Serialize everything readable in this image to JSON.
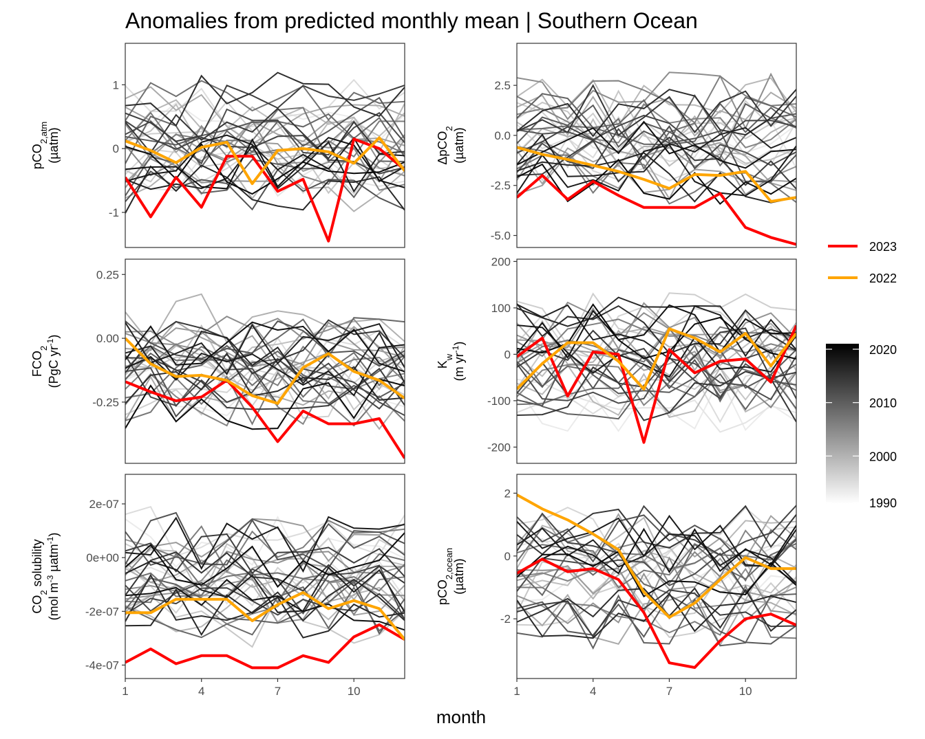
{
  "chart_data": {
    "type": "line",
    "title": "Anomalies from predicted monthly mean | Southern Ocean",
    "xlabel": "month",
    "x": [
      1,
      2,
      3,
      4,
      5,
      6,
      7,
      8,
      9,
      10,
      11,
      12
    ],
    "x_ticks": [
      "1",
      "4",
      "7",
      "10"
    ],
    "x_tick_values": [
      1,
      4,
      7,
      10
    ],
    "xlim": [
      1,
      12
    ],
    "legend": {
      "position": "right",
      "highlight": [
        {
          "name": "2023",
          "color": "#ff0000"
        },
        {
          "name": "2022",
          "color": "#ffa500"
        }
      ],
      "gradient": {
        "low_color": "#ffffff",
        "high_color": "#000000",
        "ticks": [
          "2020",
          "2010",
          "2000",
          "1990"
        ],
        "tick_values": [
          2020,
          2010,
          2000,
          1990
        ],
        "range": [
          1990,
          2020
        ]
      }
    },
    "panels": [
      {
        "id": "pco2atm",
        "ylabel_main": "pCO",
        "ylabel_sub": "2,atm",
        "ylabel_unit": "(µatm)",
        "ylim": [
          -1.55,
          1.65
        ],
        "yticks": [
          1,
          0,
          -1
        ],
        "ytick_labels": [
          "1",
          "0",
          "-1"
        ],
        "highlight": [
          {
            "name": "2023",
            "color": "#ff0000",
            "values": [
              -0.45,
              -1.07,
              -0.45,
              -0.92,
              -0.12,
              -0.12,
              -0.67,
              -0.48,
              -1.45,
              0.15,
              0.0,
              -0.33
            ]
          },
          {
            "name": "2022",
            "color": "#ffa500",
            "values": [
              0.12,
              -0.03,
              -0.22,
              0.02,
              0.1,
              -0.55,
              -0.03,
              -0.0,
              -0.05,
              -0.23,
              0.17,
              -0.35
            ]
          }
        ]
      },
      {
        "id": "dpco2",
        "ylabel_main": "ΔpCO",
        "ylabel_sub": "2",
        "ylabel_unit": "(µatm)",
        "ylim": [
          -5.6,
          4.6
        ],
        "yticks": [
          2.5,
          0.0,
          -2.5,
          -5.0
        ],
        "ytick_labels": [
          "2.5",
          "0.0",
          "-2.5",
          "-5.0"
        ],
        "highlight": [
          {
            "name": "2023",
            "color": "#ff0000",
            "values": [
              -3.1,
              -2.0,
              -3.2,
              -2.3,
              -3.0,
              -3.6,
              -3.6,
              -3.6,
              -2.9,
              -4.6,
              -5.1,
              -5.45
            ]
          },
          {
            "name": "2022",
            "color": "#ffa500",
            "values": [
              -0.6,
              -0.95,
              -1.2,
              -1.5,
              -1.8,
              -2.2,
              -2.65,
              -1.95,
              -2.0,
              -1.8,
              -3.3,
              -3.1
            ]
          }
        ]
      },
      {
        "id": "fco2",
        "ylabel_main": "FCO",
        "ylabel_sub": "2",
        "ylabel_unit": "(PgC yr",
        "ylabel_unit_sup": "-1",
        "ylabel_unit_end": ")",
        "ylim": [
          -0.49,
          0.31
        ],
        "yticks": [
          0.25,
          0.0,
          -0.25
        ],
        "ytick_labels": [
          "0.25",
          "0.00",
          "-0.25"
        ],
        "highlight": [
          {
            "name": "2023",
            "color": "#ff0000",
            "values": [
              -0.17,
              -0.21,
              -0.245,
              -0.23,
              -0.165,
              -0.27,
              -0.405,
              -0.285,
              -0.335,
              -0.335,
              -0.315,
              -0.47
            ]
          },
          {
            "name": "2022",
            "color": "#ffa500",
            "values": [
              0.0,
              -0.1,
              -0.15,
              -0.145,
              -0.165,
              -0.225,
              -0.255,
              -0.115,
              -0.06,
              -0.13,
              -0.165,
              -0.235
            ]
          }
        ]
      },
      {
        "id": "kw",
        "ylabel_main": "K",
        "ylabel_sub": "w",
        "ylabel_unit": "(m yr",
        "ylabel_unit_sup": "-1",
        "ylabel_unit_end": ")",
        "ylim": [
          -235,
          205
        ],
        "yticks": [
          200,
          100,
          0,
          -100,
          -200
        ],
        "ytick_labels": [
          "200",
          "100",
          "0",
          "-100",
          "-200"
        ],
        "highlight": [
          {
            "name": "2023",
            "color": "#ff0000",
            "values": [
              -5,
              35,
              -90,
              5,
              0,
              -190,
              10,
              -40,
              -15,
              -10,
              -60,
              62
            ]
          },
          {
            "name": "2022",
            "color": "#ffa500",
            "values": [
              -75,
              -20,
              25,
              25,
              -15,
              -75,
              55,
              35,
              5,
              45,
              -25,
              45
            ]
          }
        ]
      },
      {
        "id": "solubility",
        "ylabel_main": "CO",
        "ylabel_sub": "2",
        "ylabel_main2": " solubility",
        "ylabel_unit": "(mol m",
        "ylabel_unit_sup": "-3",
        "ylabel_unit_mid": " µatm",
        "ylabel_unit_sup2": "-1",
        "ylabel_unit_end": ")",
        "ylim": [
          -4.5e-07,
          3.1e-07
        ],
        "yticks": [
          2e-07,
          0,
          -2e-07,
          -4e-07
        ],
        "ytick_labels": [
          "2e-07",
          "0e+00",
          "-2e-07",
          "-4e-07"
        ],
        "highlight": [
          {
            "name": "2023",
            "color": "#ff0000",
            "values": [
              -3.9e-07,
              -3.4e-07,
              -3.95e-07,
              -3.65e-07,
              -3.65e-07,
              -4.1e-07,
              -4.1e-07,
              -3.65e-07,
              -3.9e-07,
              -2.95e-07,
              -2.5e-07,
              -3.05e-07
            ]
          },
          {
            "name": "2022",
            "color": "#ffa500",
            "values": [
              -2.05e-07,
              -2.05e-07,
              -1.55e-07,
              -1.55e-07,
              -1.55e-07,
              -2.35e-07,
              -1.75e-07,
              -1.3e-07,
              -1.9e-07,
              -1.6e-07,
              -1.9e-07,
              -3.05e-07
            ]
          }
        ]
      },
      {
        "id": "pco2ocean",
        "ylabel_main": "pCO",
        "ylabel_sub": "2,ocean",
        "ylabel_unit": "(µatm)",
        "ylim": [
          -3.9,
          2.6
        ],
        "yticks": [
          2,
          0,
          -2
        ],
        "ytick_labels": [
          "2",
          "0",
          "-2"
        ],
        "highlight": [
          {
            "name": "2023",
            "color": "#ff0000",
            "values": [
              -0.55,
              -0.1,
              -0.5,
              -0.4,
              -0.75,
              -1.8,
              -3.4,
              -3.55,
              -2.7,
              -2.0,
              -1.85,
              -2.2
            ]
          },
          {
            "name": "2022",
            "color": "#ffa500",
            "values": [
              1.95,
              1.5,
              1.15,
              0.7,
              0.2,
              -1.15,
              -1.95,
              -1.5,
              -0.75,
              -0.05,
              -0.4,
              -0.4
            ]
          }
        ]
      }
    ]
  }
}
